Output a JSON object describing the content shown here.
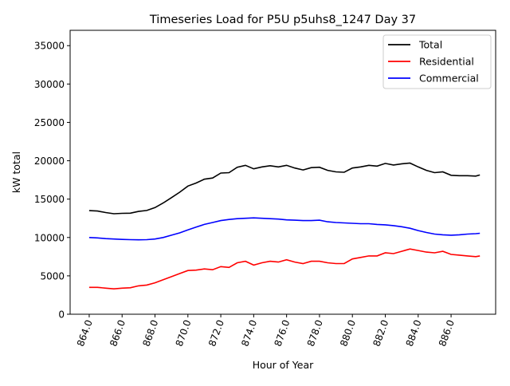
{
  "chart_data": {
    "type": "line",
    "title": "Timeseries Load for P5U p5uhs8_1247  Day 37",
    "xlabel": "Hour of Year",
    "ylabel": "kW total",
    "xlim": [
      862.84,
      888.71
    ],
    "ylim": [
      0,
      37000
    ],
    "xticks": [
      864,
      866,
      868,
      870,
      872,
      874,
      876,
      878,
      880,
      882,
      884,
      886
    ],
    "xtick_labels": [
      "864.0",
      "866.0",
      "868.0",
      "870.0",
      "872.0",
      "874.0",
      "876.0",
      "878.0",
      "880.0",
      "882.0",
      "884.0",
      "886.0"
    ],
    "yticks": [
      0,
      5000,
      10000,
      15000,
      20000,
      25000,
      30000,
      35000
    ],
    "ytick_labels": [
      "0",
      "5000",
      "10000",
      "15000",
      "20000",
      "25000",
      "30000",
      "35000"
    ],
    "grid": false,
    "legend_position": "top-right",
    "x": [
      864,
      864.5,
      865,
      865.5,
      866,
      866.5,
      867,
      867.5,
      868,
      868.5,
      869,
      869.5,
      870,
      870.5,
      871,
      871.5,
      872,
      872.5,
      873,
      873.5,
      874,
      874.5,
      875,
      875.5,
      876,
      876.5,
      877,
      877.5,
      878,
      878.5,
      879,
      879.5,
      880,
      880.5,
      881,
      881.5,
      882,
      882.5,
      883,
      883.5,
      884,
      884.5,
      885,
      885.5,
      886,
      886.5,
      887,
      887.5,
      887.75
    ],
    "series": [
      {
        "name": "Total",
        "color": "#000000",
        "values": [
          13500,
          13450,
          13250,
          13100,
          13150,
          13170,
          13400,
          13520,
          13900,
          14500,
          15200,
          15900,
          16700,
          17100,
          17600,
          17750,
          18400,
          18450,
          19150,
          19400,
          18950,
          19200,
          19350,
          19200,
          19400,
          19050,
          18800,
          19100,
          19150,
          18750,
          18550,
          18500,
          19050,
          19200,
          19400,
          19300,
          19650,
          19450,
          19600,
          19700,
          19200,
          18750,
          18450,
          18550,
          18100,
          18050,
          18050,
          18000,
          18150
        ]
      },
      {
        "name": "Residential",
        "color": "#ff0000",
        "values": [
          3500,
          3500,
          3400,
          3300,
          3400,
          3450,
          3700,
          3800,
          4100,
          4500,
          4900,
          5300,
          5700,
          5750,
          5900,
          5800,
          6200,
          6100,
          6700,
          6900,
          6400,
          6700,
          6900,
          6800,
          7100,
          6800,
          6600,
          6900,
          6900,
          6700,
          6600,
          6600,
          7200,
          7400,
          7600,
          7600,
          8000,
          7900,
          8200,
          8500,
          8300,
          8100,
          8000,
          8200,
          7800,
          7700,
          7600,
          7500,
          7600
        ]
      },
      {
        "name": "Commercial",
        "color": "#0000ff",
        "values": [
          10000,
          9950,
          9850,
          9800,
          9750,
          9720,
          9700,
          9720,
          9800,
          10000,
          10300,
          10600,
          11000,
          11350,
          11700,
          11950,
          12200,
          12350,
          12450,
          12500,
          12550,
          12500,
          12450,
          12400,
          12300,
          12250,
          12200,
          12200,
          12250,
          12050,
          11950,
          11900,
          11850,
          11800,
          11800,
          11700,
          11650,
          11550,
          11400,
          11200,
          10900,
          10650,
          10450,
          10350,
          10300,
          10350,
          10450,
          10500,
          10550
        ]
      }
    ]
  }
}
